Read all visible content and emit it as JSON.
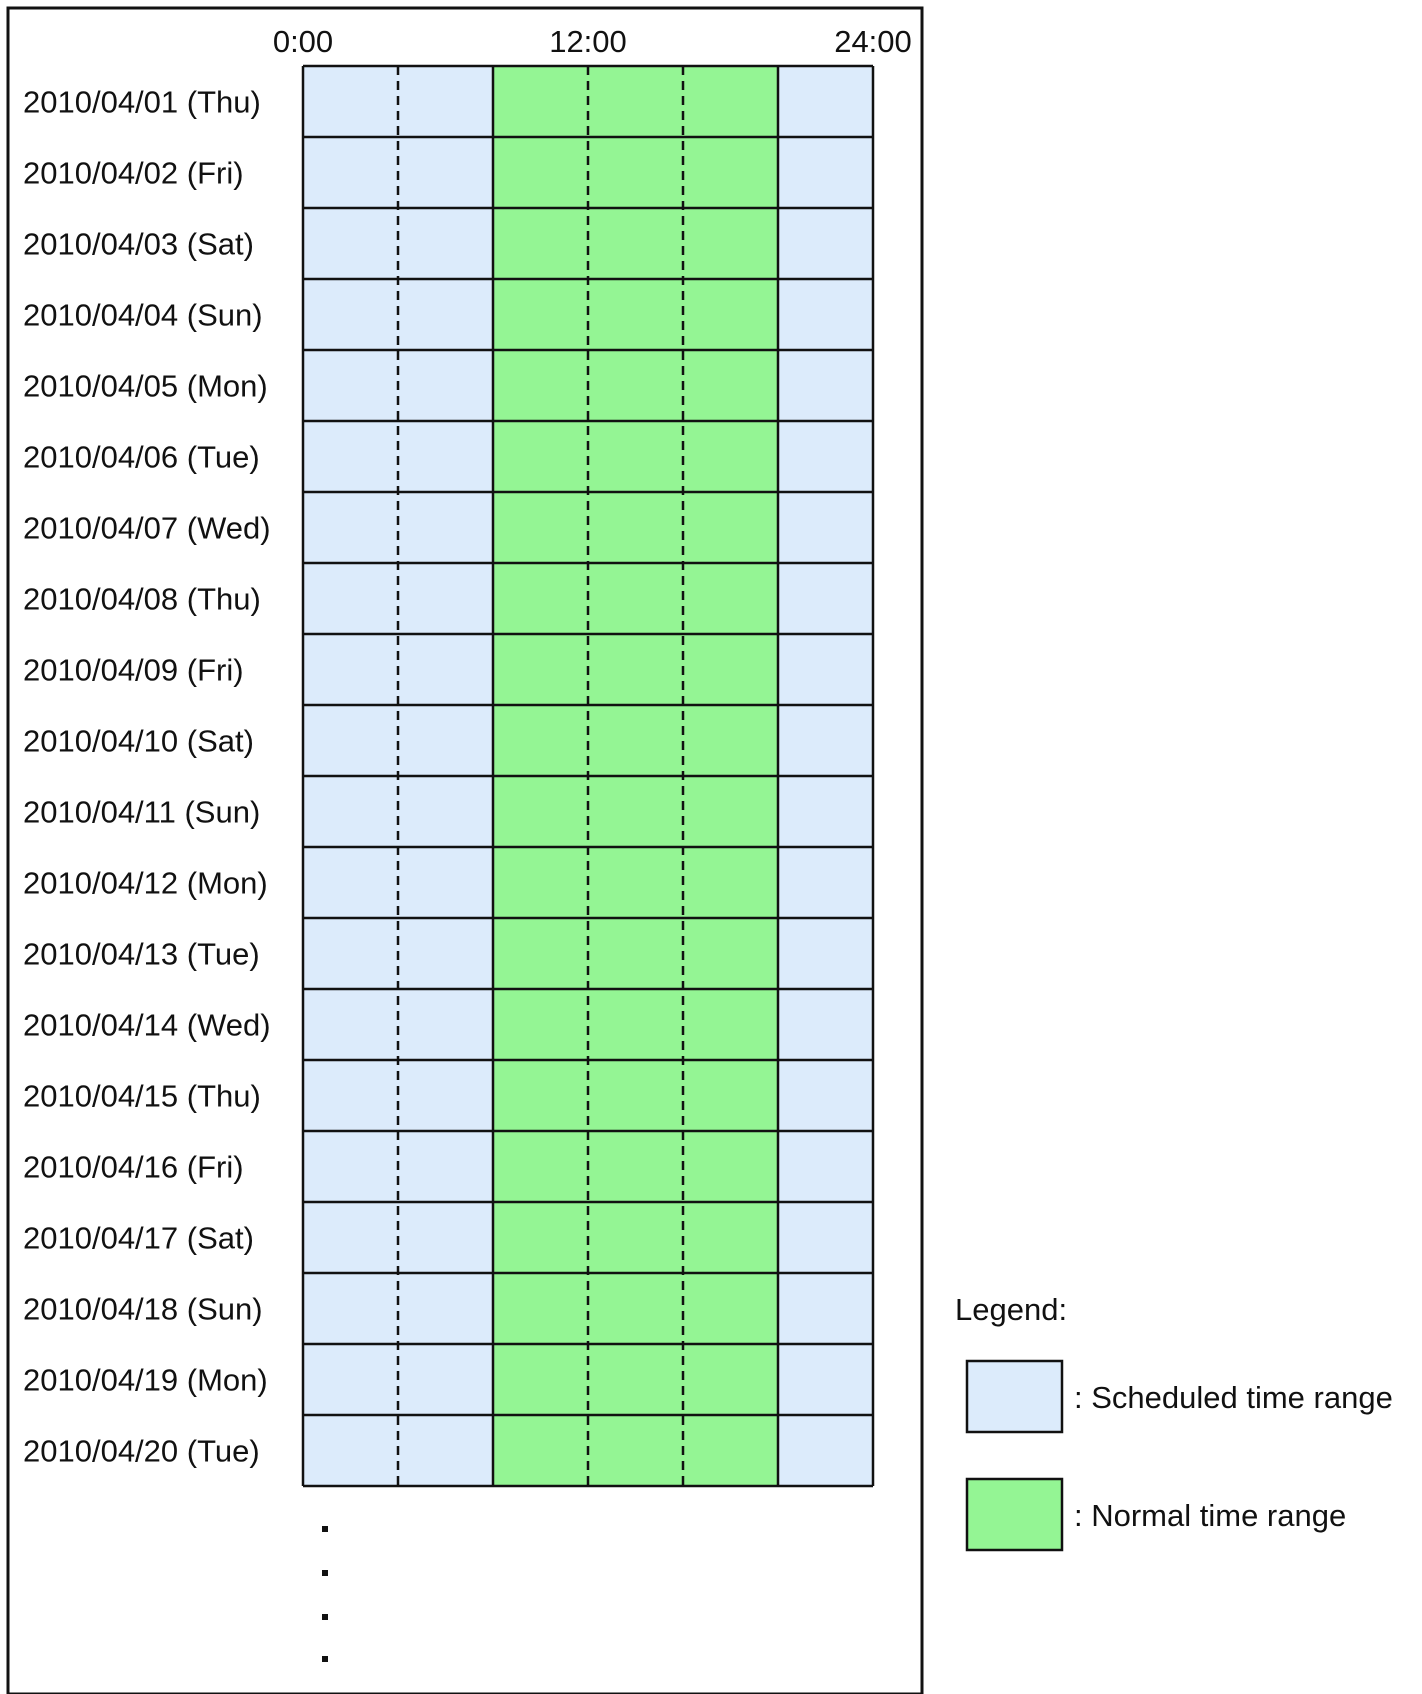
{
  "time_axis": {
    "labels": [
      "0:00",
      "12:00",
      "24:00"
    ],
    "start_hour": 0,
    "end_hour": 24
  },
  "rows": [
    "2010/04/01 (Thu)",
    "2010/04/02 (Fri)",
    "2010/04/03 (Sat)",
    "2010/04/04 (Sun)",
    "2010/04/05 (Mon)",
    "2010/04/06 (Tue)",
    "2010/04/07 (Wed)",
    "2010/04/08 (Thu)",
    "2010/04/09 (Fri)",
    "2010/04/10 (Sat)",
    "2010/04/11 (Sun)",
    "2010/04/12 (Mon)",
    "2010/04/13 (Tue)",
    "2010/04/14 (Wed)",
    "2010/04/15 (Thu)",
    "2010/04/16 (Fri)",
    "2010/04/17 (Sat)",
    "2010/04/18 (Sun)",
    "2010/04/19 (Mon)",
    "2010/04/20 (Tue)"
  ],
  "ranges": {
    "scheduled": {
      "start_hour": 0,
      "end_hour": 24,
      "color": "#dcebfb"
    },
    "normal": {
      "start_hour": 8,
      "end_hour": 20,
      "color": "#94f594"
    }
  },
  "dashed_hours": [
    4,
    12,
    16
  ],
  "solid_hours": [
    8,
    20
  ],
  "continuation": "⋮",
  "legend": {
    "title": "Legend:",
    "items": [
      {
        "label": ": Scheduled time range",
        "color": "#dcebfb"
      },
      {
        "label": ": Normal time range",
        "color": "#94f594"
      }
    ]
  }
}
